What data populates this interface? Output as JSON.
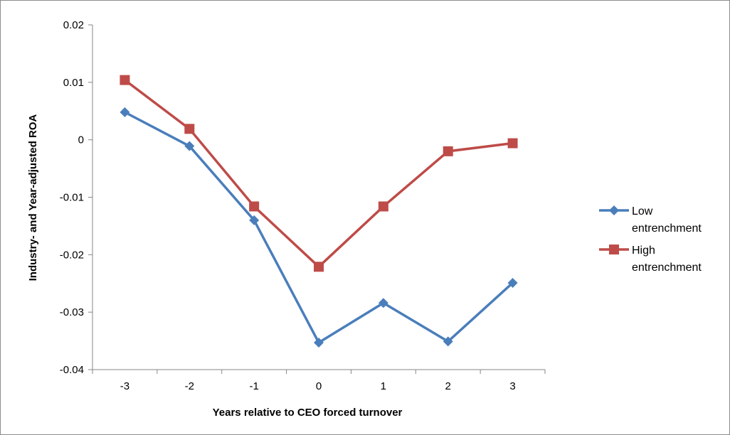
{
  "chart_data": {
    "type": "line",
    "title": "",
    "xlabel": "Years relative to CEO forced turnover",
    "ylabel": "Industry- and Year-adjusted ROA",
    "categories": [
      "-3",
      "-2",
      "-1",
      "0",
      "1",
      "2",
      "3"
    ],
    "ylim": [
      -0.04,
      0.02
    ],
    "yticks": [
      0.02,
      0.01,
      0,
      -0.01,
      -0.02,
      -0.03,
      -0.04
    ],
    "ytick_labels": [
      "0.02",
      "0.01",
      "0",
      "-0.01",
      "-0.02",
      "-0.03",
      "-0.04"
    ],
    "grid": false,
    "legend_position": "right",
    "series": [
      {
        "name_lines": [
          "Low",
          "entrenchment"
        ],
        "color": "#4a7ebb",
        "marker": "diamond",
        "values": [
          0.0048,
          -0.0011,
          -0.014,
          -0.0353,
          -0.0284,
          -0.0351,
          -0.0249
        ]
      },
      {
        "name_lines": [
          "High",
          "entrenchment"
        ],
        "color": "#be4b48",
        "marker": "square",
        "values": [
          0.0104,
          0.0019,
          -0.0116,
          -0.0221,
          -0.0116,
          -0.002,
          -0.0006
        ]
      }
    ]
  }
}
